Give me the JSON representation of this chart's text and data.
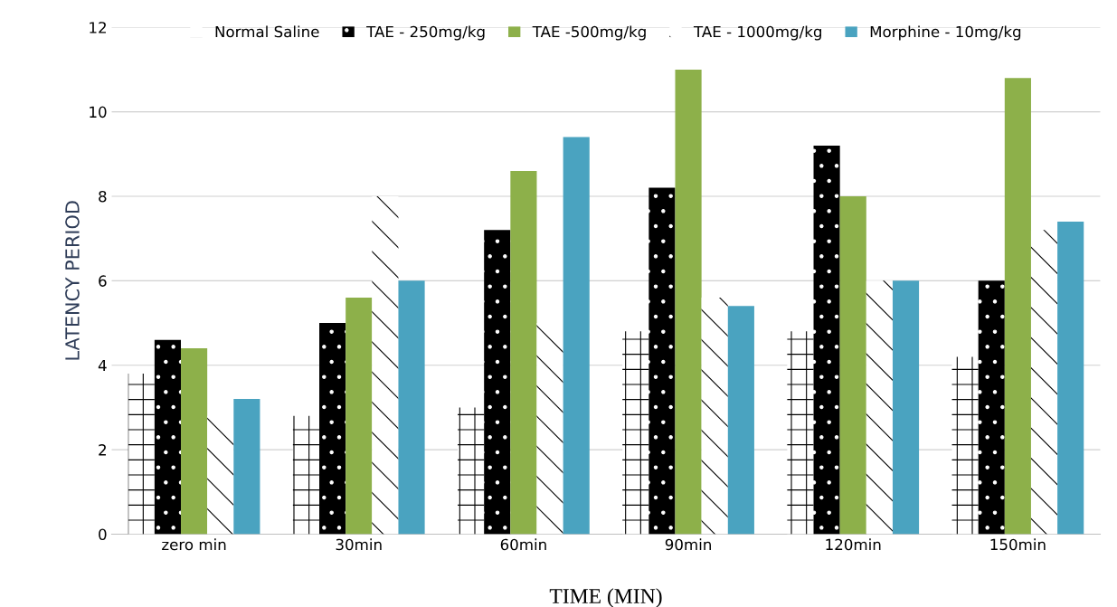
{
  "chart_data": {
    "type": "bar",
    "xlabel": "TIME (MIN)",
    "ylabel": "LATENCY PERIOD",
    "categories": [
      "zero min",
      "30min",
      "60min",
      "90min",
      "120min",
      "150min"
    ],
    "series": [
      {
        "name": "Normal Saline",
        "color": "#ffffff",
        "values": [
          3.8,
          2.8,
          3.0,
          4.8,
          4.8,
          4.2
        ]
      },
      {
        "name": "TAE - 250mg/kg",
        "color": "#000000",
        "values": [
          4.6,
          5.0,
          7.2,
          8.2,
          9.2,
          6.0
        ]
      },
      {
        "name": "TAE -500mg/kg",
        "color": "#8db04a",
        "values": [
          4.4,
          5.6,
          8.6,
          11.0,
          8.0,
          10.8
        ]
      },
      {
        "name": "TAE - 1000mg/kg",
        "color": "#ffffff",
        "values": [
          2.8,
          8.0,
          5.0,
          5.6,
          6.0,
          7.2
        ]
      },
      {
        "name": "Morphine - 10mg/kg",
        "color": "#4aa3c0",
        "values": [
          3.2,
          6.0,
          9.4,
          5.4,
          6.0,
          7.4
        ]
      }
    ],
    "ylim": [
      0,
      12
    ],
    "yticks": [
      0,
      2,
      4,
      6,
      8,
      10,
      12
    ],
    "grid": "y",
    "legend": "top"
  }
}
